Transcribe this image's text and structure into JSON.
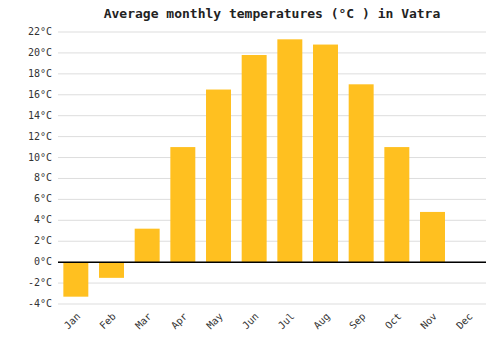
{
  "chart_data": {
    "type": "bar",
    "title": "Average monthly temperatures (°C ) in Vatra",
    "categories": [
      "Jan",
      "Feb",
      "Mar",
      "Apr",
      "May",
      "Jun",
      "Jul",
      "Aug",
      "Sep",
      "Oct",
      "Nov",
      "Dec"
    ],
    "values": [
      -3.3,
      -1.5,
      3.2,
      11.0,
      16.5,
      19.8,
      21.3,
      20.8,
      17.0,
      11.0,
      4.8,
      0.0
    ],
    "color": "#FFC020",
    "ylim": [
      -4,
      22
    ],
    "yticks": [
      {
        "value": -4,
        "label": "-4°C"
      },
      {
        "value": -2,
        "label": "-2°C"
      },
      {
        "value": 0,
        "label": "0°C"
      },
      {
        "value": 2,
        "label": "2°C"
      },
      {
        "value": 4,
        "label": "4°C"
      },
      {
        "value": 6,
        "label": "6°C"
      },
      {
        "value": 8,
        "label": "8°C"
      },
      {
        "value": 10,
        "label": "10°C"
      },
      {
        "value": 12,
        "label": "12°C"
      },
      {
        "value": 14,
        "label": "14°C"
      },
      {
        "value": 16,
        "label": "16°C"
      },
      {
        "value": 18,
        "label": "18°C"
      },
      {
        "value": 20,
        "label": "20°C"
      },
      {
        "value": 22,
        "label": "22°C"
      }
    ],
    "grid": true
  }
}
